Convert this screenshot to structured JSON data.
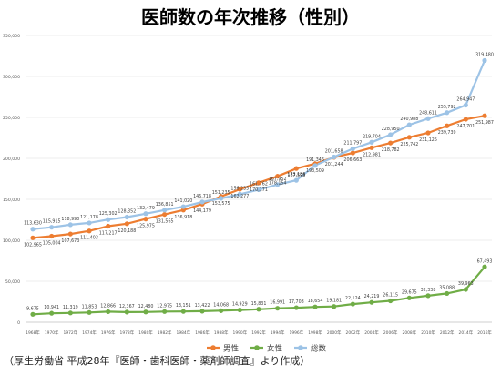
{
  "chart_data": {
    "type": "line",
    "title": "医師数の年次推移（性別）",
    "categories": [
      "1968年",
      "1970年",
      "1972年",
      "1974年",
      "1976年",
      "1978年",
      "1980年",
      "1982年",
      "1984年",
      "1986年",
      "1988年",
      "1990年",
      "1992年",
      "1994年",
      "1996年",
      "1998年",
      "2000年",
      "2002年",
      "2004年",
      "2006年",
      "2008年",
      "2010年",
      "2012年",
      "2014年",
      "2016年"
    ],
    "series": [
      {
        "name": "男性",
        "color": "#ED7D31",
        "values": [
          102965,
          105004,
          107673,
          111403,
          117217,
          120188,
          125975,
          131565,
          136918,
          144179,
          153575,
          162277,
          170171,
          178154,
          187598,
          193509,
          201244,
          206663,
          212981,
          218782,
          225742,
          231125,
          239739,
          247701,
          251987
        ]
      },
      {
        "name": "女性",
        "color": "#70AD47",
        "values": [
          9675,
          10941,
          11319,
          11853,
          12866,
          12367,
          12480,
          12975,
          13151,
          13422,
          14068,
          14929,
          15831,
          16991,
          17708,
          18654,
          19181,
          22124,
          24219,
          26115,
          29675,
          32338,
          35088,
          39963,
          67493
        ]
      },
      {
        "name": "総数",
        "color": "#9DC3E6",
        "values": [
          113630,
          115915,
          118990,
          121178,
          125302,
          128352,
          132479,
          136851,
          141020,
          146718,
          151235,
          156235,
          161762,
          167952,
          173186,
          191346,
          201658,
          211797,
          219704,
          228950,
          240988,
          248611,
          255792,
          264947,
          319480
        ]
      }
    ],
    "yticks": [
      0,
      50000,
      100000,
      150000,
      200000,
      250000,
      300000,
      350000
    ],
    "ytick_labels": [
      "0",
      "50,000",
      "100,000",
      "150,000",
      "200,000",
      "250,000",
      "300,000",
      "350,000"
    ],
    "ylim": [
      0,
      350000
    ],
    "legend_position": "bottom",
    "grid": true
  },
  "source_note": "（厚生労働省 平成28年『医師・歯科医師・薬剤師調査』より作成）"
}
